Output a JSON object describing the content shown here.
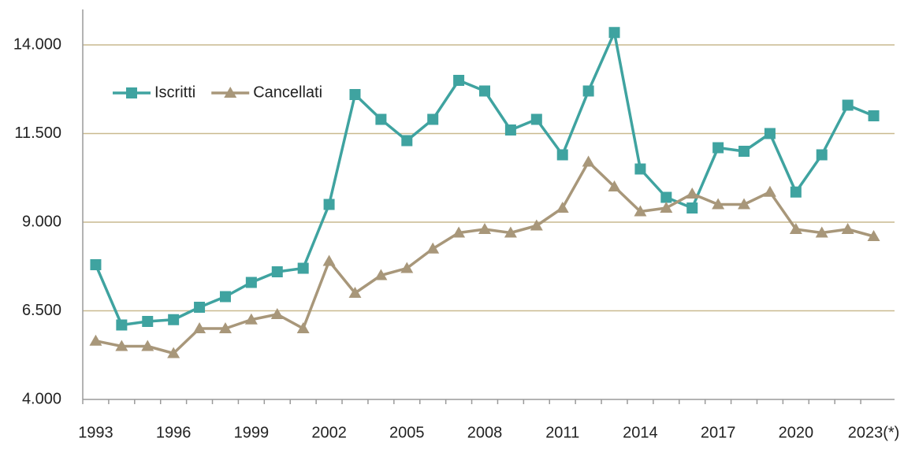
{
  "chart_data": {
    "type": "line",
    "categories": [
      "1993",
      null,
      null,
      "1996",
      null,
      null,
      "1999",
      null,
      null,
      "2002",
      null,
      null,
      "2005",
      null,
      null,
      "2008",
      null,
      null,
      "2011",
      null,
      null,
      "2014",
      null,
      null,
      "2017",
      null,
      null,
      "2020",
      null,
      null,
      "2023(*)"
    ],
    "series": [
      {
        "name": "Iscritti",
        "color": "#3fa3a0",
        "marker": "square",
        "values": [
          7800,
          6100,
          6200,
          6250,
          6600,
          6900,
          7300,
          7600,
          7700,
          9500,
          12600,
          11900,
          11300,
          11900,
          13000,
          12700,
          11600,
          11900,
          10900,
          12700,
          14350,
          10500,
          9700,
          9400,
          11100,
          11000,
          11500,
          9850,
          10900,
          12300,
          12000
        ]
      },
      {
        "name": "Cancellati",
        "color": "#a8977a",
        "marker": "triangle",
        "values": [
          5650,
          5500,
          5500,
          5300,
          6000,
          6000,
          6250,
          6400,
          6000,
          7900,
          7000,
          7500,
          7700,
          8250,
          8700,
          8800,
          8700,
          8900,
          9400,
          10700,
          10000,
          9300,
          9400,
          9800,
          9500,
          9500,
          9850,
          8800,
          8700,
          8800,
          8600
        ]
      }
    ],
    "ylim": [
      4000,
      15000
    ],
    "yticks": [
      {
        "value": 4000,
        "label": "4.000"
      },
      {
        "value": 6500,
        "label": "6.500"
      },
      {
        "value": 9000,
        "label": "9.000"
      },
      {
        "value": 11500,
        "label": "11.500"
      },
      {
        "value": 14000,
        "label": "14.000"
      }
    ],
    "grid": true,
    "legend": "top-left"
  }
}
